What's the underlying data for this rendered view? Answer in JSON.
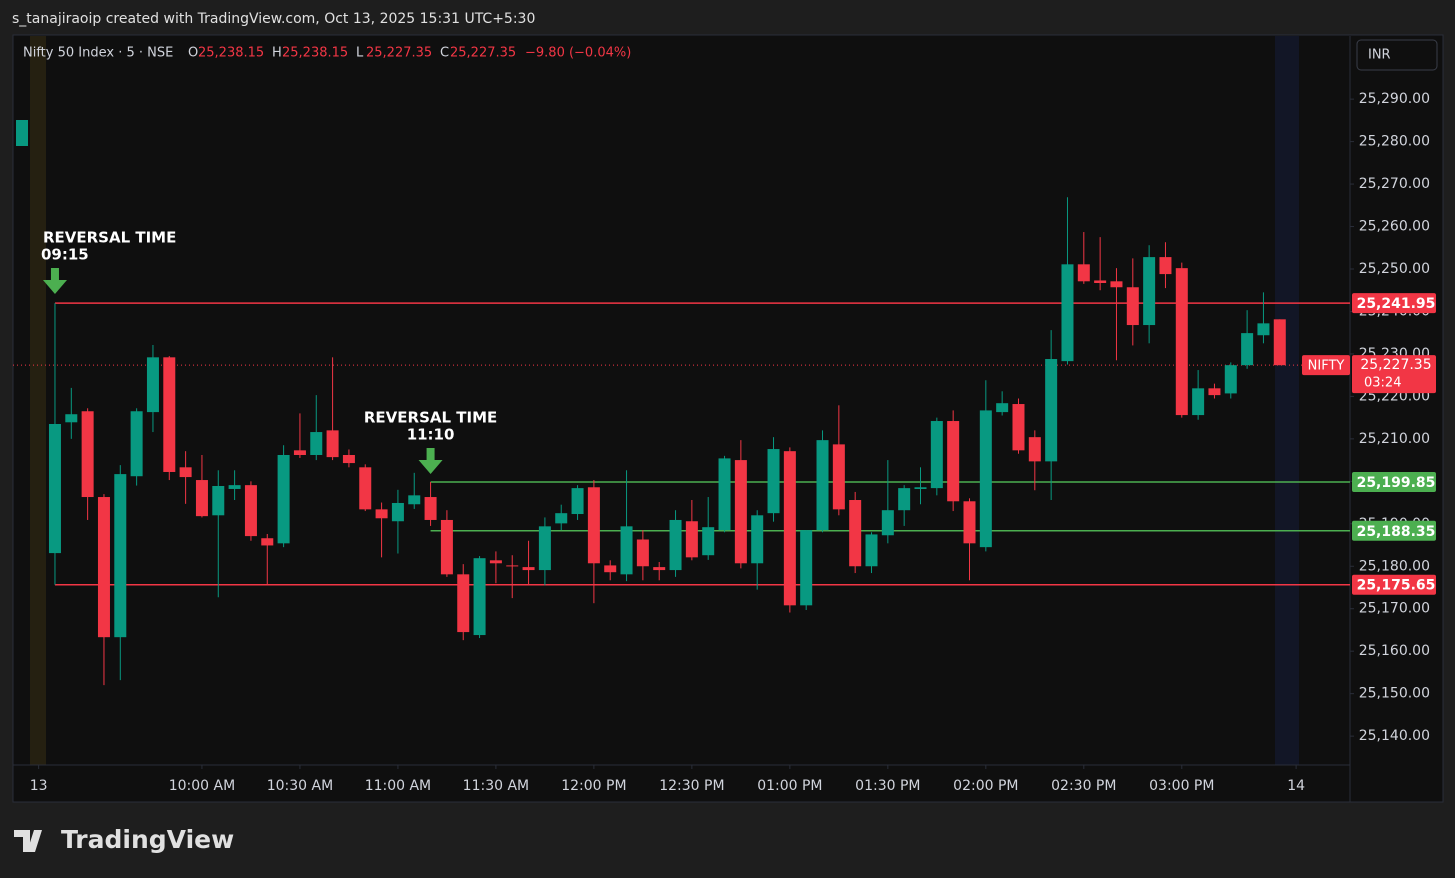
{
  "header": {
    "credit": "s_tanajiraoip created with TradingView.com, Oct 13, 2025 15:31 UTC+5:30"
  },
  "legend": {
    "symbol": "Nifty 50 Index · 5 · NSE",
    "ohlc": [
      {
        "key": "O",
        "value": "25,238.15"
      },
      {
        "key": "H",
        "value": "25,238.15"
      },
      {
        "key": "L",
        "value": "25,227.35"
      },
      {
        "key": "C",
        "value": "25,227.35"
      }
    ],
    "change": "−9.80 (−0.04%)"
  },
  "currency": "INR",
  "footer": {
    "brand": "TradingView"
  },
  "chart_data": {
    "type": "candlestick",
    "up_color": "#089981",
    "down_color": "#f23645",
    "series": [
      {
        "name": "NIFTY",
        "open": [
          25183.1,
          25213.9,
          25216.5,
          25196.3,
          25163.3,
          25201.2,
          25216.3,
          25229.2,
          25203.3,
          25200.3,
          25192.0,
          25198.2,
          25199.1,
          25186.6,
          25185.4,
          25207.3,
          25206.2,
          25212.0,
          25206.2,
          25203.3,
          25193.4,
          25190.6,
          25194.6,
          25196.3,
          25190.9,
          25178.1,
          25163.8,
          25181.4,
          25180.2,
          25179.8,
          25179.1,
          25190.1,
          25192.3,
          25198.6,
          25180.2,
          25178.1,
          25186.3,
          25179.8,
          25179.1,
          25190.6,
          25182.6,
          25188.5,
          25205.0,
          25180.7,
          25192.5,
          25207.1,
          25170.8,
          25188.5,
          25208.7,
          25195.6,
          25180.0,
          25187.3,
          25193.2,
          25198.2,
          25198.4,
          25214.2,
          25195.3,
          25184.5,
          25216.3,
          25218.2,
          25210.4,
          25204.7,
          25228.3,
          25251.1,
          25247.3,
          25247.1,
          25245.7,
          25236.8,
          25252.8,
          25250.2,
          25215.6,
          25221.9,
          25220.7,
          25227.35,
          25234.4,
          25238.15
        ],
        "high": [
          25241.95,
          25222.0,
          25217.2,
          25197.0,
          25203.8,
          25217.2,
          25232.1,
          25229.5,
          25207.1,
          25206.2,
          25202.6,
          25202.6,
          25200.0,
          25187.6,
          25208.5,
          25216.0,
          25220.3,
          25229.2,
          25207.5,
          25204.0,
          25195.0,
          25198.0,
          25202.0,
          25199.85,
          25193.2,
          25180.5,
          25182.4,
          25183.5,
          25182.6,
          25186.0,
          25191.5,
          25194.5,
          25199.1,
          25200.3,
          25181.4,
          25202.6,
          25188.5,
          25181.0,
          25193.2,
          25195.6,
          25196.3,
          25206.0,
          25209.7,
          25193.2,
          25210.4,
          25208.0,
          25188.5,
          25212.0,
          25217.9,
          25197.5,
          25188.0,
          25205.0,
          25199.1,
          25203.3,
          25215.0,
          25216.7,
          25196.0,
          25223.8,
          25221.2,
          25219.5,
          25212.0,
          25235.6,
          25266.9,
          25258.7,
          25257.5,
          25250.2,
          25252.5,
          25255.6,
          25256.3,
          25251.5,
          25226.2,
          25223.0,
          25228.0,
          25240.3,
          25244.5,
          25238.15
        ],
        "low": [
          25175.65,
          25210.0,
          25190.9,
          25152.0,
          25153.2,
          25199.0,
          25211.6,
          25200.3,
          25194.7,
          25191.5,
          25172.7,
          25195.6,
          25186.0,
          25175.8,
          25184.5,
          25205.5,
          25205.0,
          25205.0,
          25203.3,
          25193.0,
          25182.1,
          25183.0,
          25193.5,
          25189.5,
          25177.5,
          25162.6,
          25163.1,
          25176.0,
          25172.5,
          25175.5,
          25175.5,
          25188.5,
          25190.9,
          25171.3,
          25176.7,
          25176.5,
          25176.7,
          25176.7,
          25177.5,
          25181.4,
          25181.5,
          25188.0,
          25179.5,
          25174.5,
          25190.5,
          25169.1,
          25169.7,
          25188.0,
          25192.0,
          25178.4,
          25178.4,
          25185.4,
          25189.5,
          25194.6,
          25196.7,
          25193.0,
          25176.7,
          25183.5,
          25215.5,
          25206.5,
          25197.9,
          25195.6,
          25227.5,
          25246.5,
          25245.0,
          25228.5,
          25232.0,
          25232.5,
          25245.5,
          25215.0,
          25214.5,
          25219.5,
          25219.5,
          25226.5,
          25232.5,
          25227.35
        ],
        "close": [
          25213.5,
          25215.8,
          25196.3,
          25163.3,
          25201.7,
          25216.5,
          25229.2,
          25202.2,
          25201.0,
          25191.8,
          25198.9,
          25199.1,
          25187.1,
          25184.9,
          25206.2,
          25206.2,
          25211.6,
          25205.7,
          25204.3,
          25193.4,
          25191.3,
          25194.9,
          25196.7,
          25190.9,
          25178.1,
          25164.5,
          25181.9,
          25180.7,
          25180.0,
          25179.1,
          25189.4,
          25192.5,
          25198.4,
          25180.7,
          25178.6,
          25189.4,
          25180.0,
          25179.1,
          25190.9,
          25182.1,
          25189.2,
          25205.4,
          25180.7,
          25192.0,
          25207.6,
          25170.8,
          25188.5,
          25209.7,
          25193.4,
          25180.0,
          25187.5,
          25193.2,
          25198.4,
          25198.6,
          25214.2,
          25195.3,
          25185.4,
          25216.7,
          25218.4,
          25207.3,
          25204.7,
          25228.8,
          25251.1,
          25247.1,
          25246.7,
          25245.7,
          25236.8,
          25252.8,
          25248.8,
          25215.6,
          25221.9,
          25220.3,
          25227.35,
          25234.9,
          25237.2,
          25227.35
        ]
      }
    ],
    "last_price": {
      "value": 25227.35,
      "label": "25,227.35",
      "countdown": "03:24"
    },
    "xlim": [
      -2.57,
      79.3
    ],
    "xticks": [
      {
        "value": -1,
        "label": "13"
      },
      {
        "value": 9,
        "label": "10:00 AM"
      },
      {
        "value": 15,
        "label": "10:30 AM"
      },
      {
        "value": 21,
        "label": "11:00 AM"
      },
      {
        "value": 27,
        "label": "11:30 AM"
      },
      {
        "value": 33,
        "label": "12:00 PM"
      },
      {
        "value": 39,
        "label": "12:30 PM"
      },
      {
        "value": 45,
        "label": "01:00 PM"
      },
      {
        "value": 51,
        "label": "01:30 PM"
      },
      {
        "value": 57,
        "label": "02:00 PM"
      },
      {
        "value": 63,
        "label": "02:30 PM"
      },
      {
        "value": 69,
        "label": "03:00 PM"
      },
      {
        "value": 76,
        "label": "14"
      }
    ],
    "ylim": [
      25133.2,
      25305.1
    ],
    "yticks": [
      {
        "value": 25140,
        "label": "25,140.00"
      },
      {
        "value": 25150,
        "label": "25,150.00"
      },
      {
        "value": 25160,
        "label": "25,160.00"
      },
      {
        "value": 25170,
        "label": "25,170.00"
      },
      {
        "value": 25180,
        "label": "25,180.00"
      },
      {
        "value": 25190,
        "label": "25,190.00"
      },
      {
        "value": 25200,
        "label": "25,200.00"
      },
      {
        "value": 25210,
        "label": "25,210.00"
      },
      {
        "value": 25220,
        "label": "25,220.00"
      },
      {
        "value": 25230,
        "label": "25,230.00"
      },
      {
        "value": 25240,
        "label": "25,240.00"
      },
      {
        "value": 25250,
        "label": "25,250.00"
      },
      {
        "value": 25260,
        "label": "25,260.00"
      },
      {
        "value": 25270,
        "label": "25,270.00"
      },
      {
        "value": 25280,
        "label": "25,280.00"
      },
      {
        "value": 25290,
        "label": "25,290.00"
      }
    ],
    "levels": [
      {
        "value": 25241.95,
        "label": "25,241.95",
        "color": "#f23645",
        "start": 0
      },
      {
        "value": 25199.85,
        "label": "25,199.85",
        "color": "#4caf50",
        "start": 23
      },
      {
        "value": 25188.35,
        "label": "25,188.35",
        "color": "#4caf50",
        "start": 23
      },
      {
        "value": 25175.65,
        "label": "25,175.65",
        "color": "#f23645",
        "start": 0
      }
    ],
    "annotations": [
      {
        "title": "REVERSAL TIME",
        "time": "09:15",
        "at": 0
      },
      {
        "title": "REVERSAL TIME",
        "time": "11:10",
        "at": 23
      }
    ]
  }
}
